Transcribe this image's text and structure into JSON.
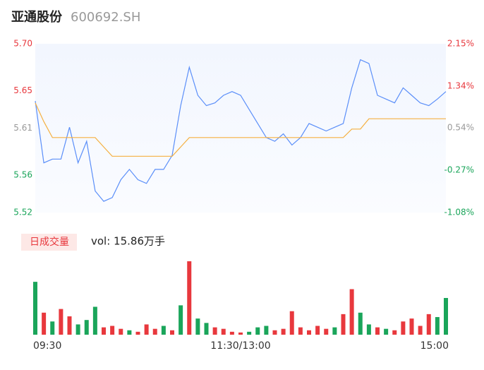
{
  "header": {
    "name": "亚通股份",
    "code": "600692.SH"
  },
  "chart_data": [
    {
      "type": "line",
      "xlim": [
        0,
        48
      ],
      "ylim": [
        5.52,
        5.7
      ],
      "yticks": [
        {
          "value": 5.7,
          "label": "5.70"
        },
        {
          "value": 5.65,
          "label": "5.65"
        },
        {
          "value": 5.61,
          "label": "5.61"
        },
        {
          "value": 5.56,
          "label": "5.56"
        },
        {
          "value": 5.52,
          "label": "5.52"
        }
      ],
      "y2lim": [
        -1.08,
        2.15
      ],
      "y2ticks": [
        {
          "value": 2.15,
          "label": "2.15%"
        },
        {
          "value": 1.34,
          "label": "1.34%"
        },
        {
          "value": 0.54,
          "label": "0.54%"
        },
        {
          "value": -0.27,
          "label": "-0.27%"
        },
        {
          "value": -1.08,
          "label": "-1.08%"
        }
      ],
      "tick_colors": [
        "#e8383d",
        "#e8383d",
        "#999999",
        "#1aa55a",
        "#1aa55a"
      ],
      "series": [
        {
          "color": "#5b8ff9",
          "values": [
            5.639,
            5.573,
            5.577,
            5.577,
            5.611,
            5.573,
            5.596,
            5.543,
            5.532,
            5.536,
            5.555,
            5.566,
            5.555,
            5.551,
            5.566,
            5.566,
            5.581,
            5.634,
            5.675,
            5.645,
            5.634,
            5.637,
            5.645,
            5.649,
            5.645,
            5.63,
            5.615,
            5.6,
            5.596,
            5.604,
            5.592,
            5.6,
            5.615,
            5.611,
            5.607,
            5.611,
            5.615,
            5.653,
            5.683,
            5.679,
            5.645,
            5.641,
            5.637,
            5.653,
            5.645,
            5.637,
            5.634,
            5.641,
            5.649
          ]
        },
        {
          "color": "#f5b041",
          "values": [
            5.637,
            5.617,
            5.6,
            5.6,
            5.6,
            5.6,
            5.6,
            5.6,
            5.59,
            5.58,
            5.58,
            5.58,
            5.58,
            5.58,
            5.58,
            5.58,
            5.58,
            5.59,
            5.6,
            5.6,
            5.6,
            5.6,
            5.6,
            5.6,
            5.6,
            5.6,
            5.6,
            5.6,
            5.6,
            5.6,
            5.6,
            5.6,
            5.6,
            5.6,
            5.6,
            5.6,
            5.6,
            5.609,
            5.609,
            5.62,
            5.62,
            5.62,
            5.62,
            5.62,
            5.62,
            5.62,
            5.62,
            5.62,
            5.62
          ]
        }
      ]
    },
    {
      "type": "bar",
      "button": "日成交量",
      "label": "vol: 15.86万手",
      "xlim": [
        0,
        48
      ],
      "ylim": [
        0,
        100
      ],
      "xticks": [
        {
          "value": 0,
          "label": "09:30"
        },
        {
          "value": 24,
          "label": "11:30/13:00"
        },
        {
          "value": 48,
          "label": "15:00"
        }
      ],
      "values": [
        72,
        30,
        18,
        35,
        25,
        14,
        20,
        38,
        10,
        12,
        8,
        6,
        4,
        14,
        8,
        12,
        6,
        40,
        100,
        22,
        16,
        10,
        8,
        4,
        3,
        4,
        10,
        12,
        6,
        8,
        32,
        10,
        6,
        12,
        8,
        10,
        28,
        62,
        30,
        14,
        10,
        8,
        6,
        18,
        22,
        12,
        28,
        24,
        50
      ],
      "colors": [
        "#1aa55a",
        "#e8383d",
        "#1aa55a",
        "#e8383d",
        "#e8383d",
        "#1aa55a",
        "#1aa55a",
        "#1aa55a",
        "#e8383d",
        "#e8383d",
        "#e8383d",
        "#1aa55a",
        "#e8383d",
        "#e8383d",
        "#e8383d",
        "#1aa55a",
        "#e8383d",
        "#1aa55a",
        "#e8383d",
        "#1aa55a",
        "#1aa55a",
        "#e8383d",
        "#e8383d",
        "#e8383d",
        "#e8383d",
        "#1aa55a",
        "#1aa55a",
        "#1aa55a",
        "#e8383d",
        "#e8383d",
        "#e8383d",
        "#e8383d",
        "#e8383d",
        "#e8383d",
        "#e8383d",
        "#1aa55a",
        "#e8383d",
        "#e8383d",
        "#1aa55a",
        "#1aa55a",
        "#e8383d",
        "#1aa55a",
        "#e8383d",
        "#e8383d",
        "#e8383d",
        "#e8383d",
        "#e8383d",
        "#1aa55a",
        "#1aa55a"
      ]
    }
  ]
}
